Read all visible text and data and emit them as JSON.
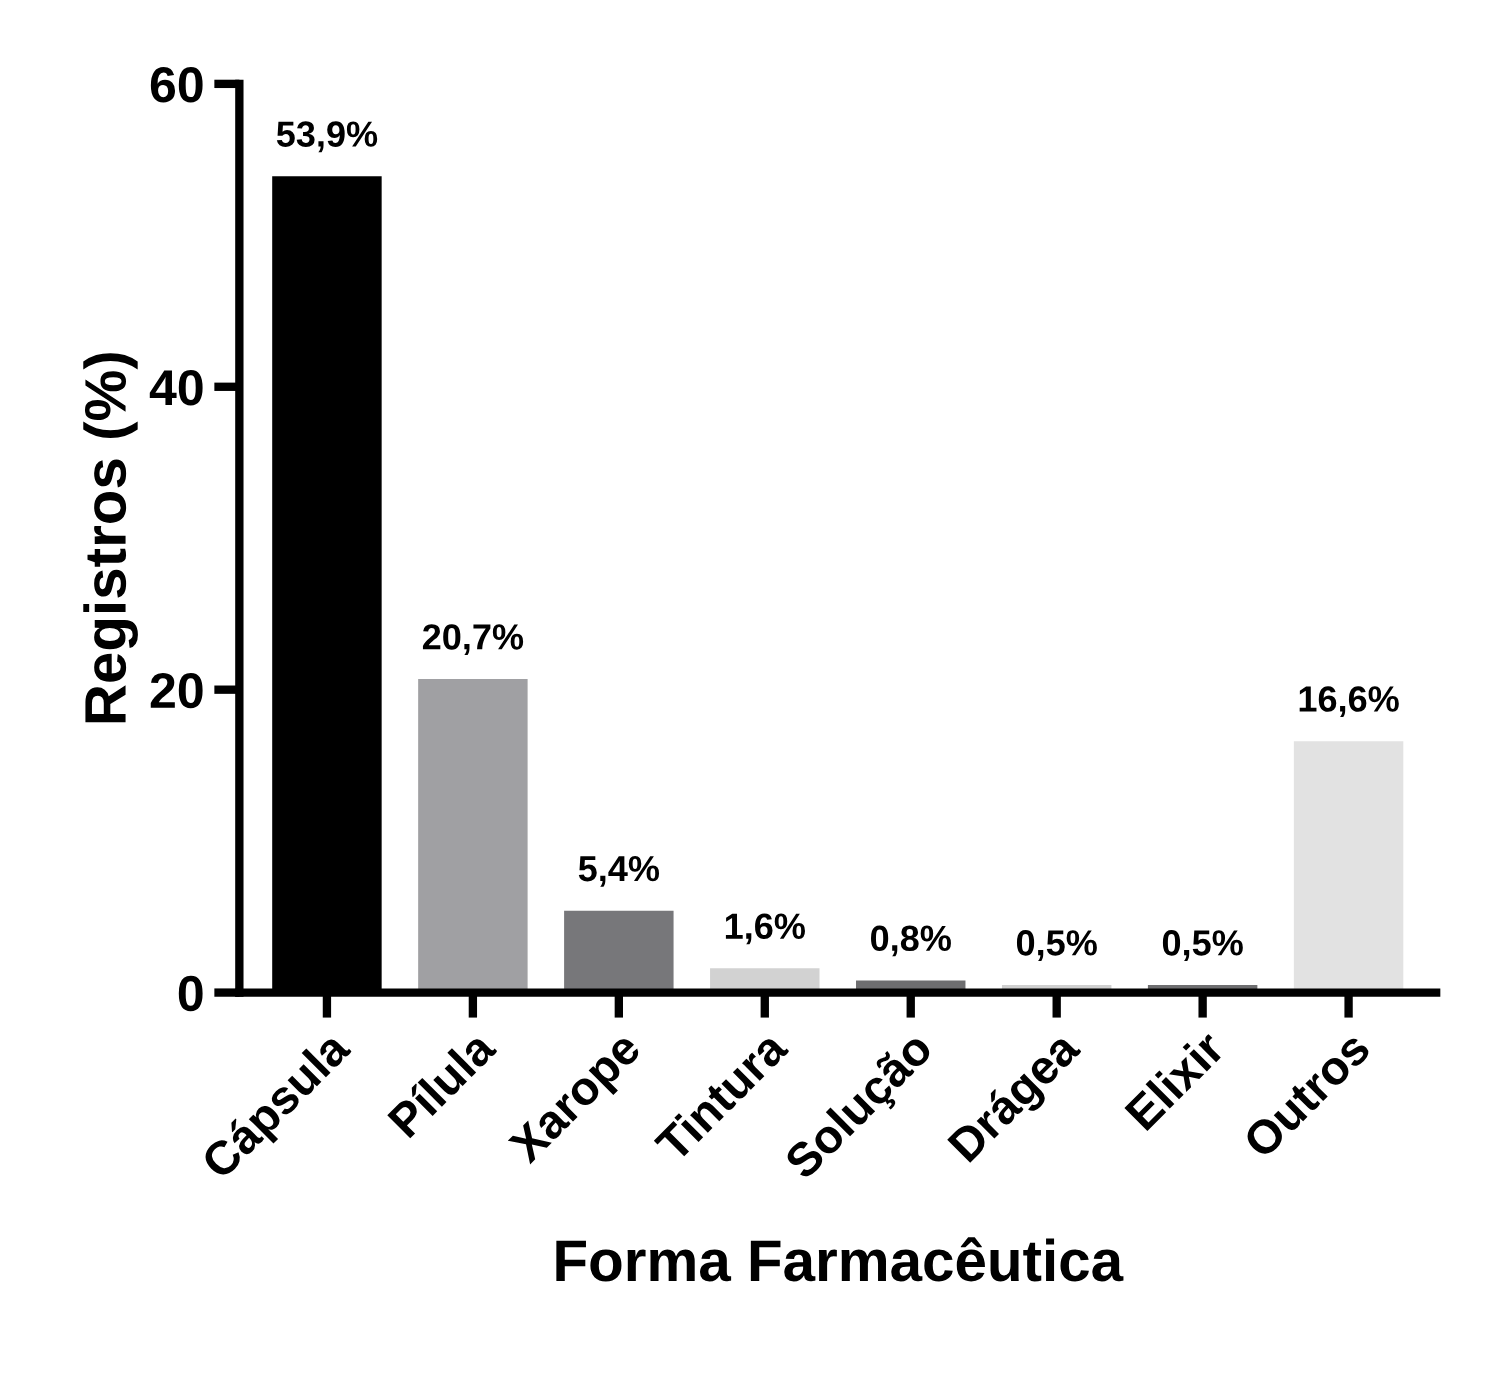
{
  "chart_data": {
    "type": "bar",
    "xlabel": "Forma Farmacêutica",
    "ylabel": "Registros (%)",
    "categories": [
      "Cápsula",
      "Pílula",
      "Xarope",
      "Tintura",
      "Solução",
      "Drágea",
      "Elixir",
      "Outros"
    ],
    "values": [
      53.9,
      20.7,
      5.4,
      1.6,
      0.8,
      0.5,
      0.5,
      16.6
    ],
    "value_labels": [
      "53,9%",
      "20,7%",
      "5,4%",
      "1,6%",
      "0,8%",
      "0,5%",
      "0,5%",
      "16,6%"
    ],
    "colors": [
      "#000000",
      "#a0a0a3",
      "#77777a",
      "#d2d2d2",
      "#6e6e70",
      "#cfcfcf",
      "#6e6e70",
      "#e2e2e2"
    ],
    "ylim": [
      0,
      60
    ],
    "yticks": [
      0,
      20,
      40,
      60
    ],
    "grid": false
  }
}
